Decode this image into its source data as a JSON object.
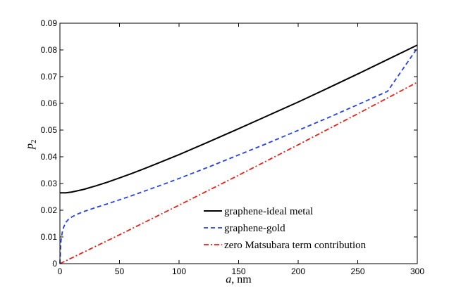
{
  "chart_data": {
    "type": "line",
    "title": "",
    "xlabel_var": "a",
    "xlabel_unit": ", nm",
    "ylabel_base": "p",
    "ylabel_sub": "2",
    "xlim": [
      0,
      300
    ],
    "ylim": [
      0,
      0.09
    ],
    "xticks": [
      0,
      50,
      100,
      150,
      200,
      250,
      300
    ],
    "yticks": [
      0,
      0.01,
      0.02,
      0.03,
      0.04,
      0.05,
      0.06,
      0.07,
      0.08,
      0.09
    ],
    "grid": false,
    "legend_position": "bottom-right",
    "series": [
      {
        "name": "graphene-ideal metal",
        "color": "#000000",
        "style": "solid",
        "x": [
          0,
          5,
          10,
          20,
          30,
          40,
          50,
          60,
          70,
          80,
          90,
          100,
          125,
          150,
          175,
          200,
          225,
          250,
          275,
          300
        ],
        "y": [
          0.0265,
          0.0265,
          0.0268,
          0.0278,
          0.0291,
          0.0305,
          0.0321,
          0.0337,
          0.0354,
          0.0372,
          0.039,
          0.0408,
          0.0456,
          0.0505,
          0.0555,
          0.0605,
          0.0657,
          0.071,
          0.0764,
          0.0818
        ]
      },
      {
        "name": "graphene-gold",
        "color": "#2541e6",
        "style": "dashed",
        "x": [
          0,
          0.5,
          1,
          2,
          3,
          5,
          7,
          10,
          15,
          20,
          30,
          40,
          50,
          60,
          70,
          80,
          90,
          100,
          125,
          150,
          175,
          200,
          225,
          250,
          275,
          300
        ],
        "y": [
          0,
          0.006,
          0.009,
          0.0118,
          0.0135,
          0.0155,
          0.0165,
          0.0175,
          0.0186,
          0.0195,
          0.021,
          0.0224,
          0.0239,
          0.0254,
          0.027,
          0.0286,
          0.0302,
          0.0319,
          0.0362,
          0.0407,
          0.0452,
          0.0499,
          0.0546,
          0.0595,
          0.0645,
          0.0807
        ]
      },
      {
        "name": "zero Matsubara term contribution",
        "color": "#e8221b",
        "style": "dashdot",
        "x": [
          0,
          50,
          100,
          150,
          200,
          250,
          300
        ],
        "y": [
          0,
          0.0108,
          0.0219,
          0.0331,
          0.0445,
          0.0561,
          0.0679
        ]
      }
    ]
  }
}
